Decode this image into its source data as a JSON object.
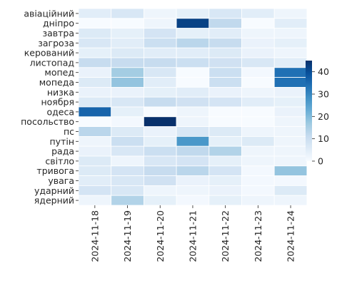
{
  "chart_data": {
    "type": "heatmap",
    "title": "",
    "xlabel": "",
    "ylabel": "",
    "x_labels": [
      "2024-11-18",
      "2024-11-19",
      "2024-11-20",
      "2024-11-21",
      "2024-11-22",
      "2024-11-23",
      "2024-11-24"
    ],
    "y_labels": [
      "авіаційний",
      "дніпро",
      "завтра",
      "загроза",
      "керований",
      "листопад",
      "мопед",
      "мопеда",
      "низка",
      "ноября",
      "одеса",
      "посольство",
      "пс",
      "путін",
      "рада",
      "світло",
      "тривога",
      "увага",
      "ударний",
      "ядерний"
    ],
    "values": [
      [
        5,
        7,
        2,
        4,
        7,
        5,
        2
      ],
      [
        0,
        0,
        2,
        42,
        12,
        0,
        5
      ],
      [
        6,
        4,
        8,
        4,
        5,
        2,
        2
      ],
      [
        7,
        5,
        10,
        13,
        11,
        3,
        4
      ],
      [
        4,
        6,
        5,
        5,
        6,
        3,
        2
      ],
      [
        11,
        11,
        11,
        10,
        9,
        7,
        5
      ],
      [
        3,
        16,
        7,
        0,
        10,
        1,
        34
      ],
      [
        6,
        18,
        5,
        0,
        10,
        0,
        34
      ],
      [
        3,
        3,
        4,
        5,
        3,
        2,
        3
      ],
      [
        6,
        7,
        11,
        9,
        8,
        5,
        4
      ],
      [
        36,
        4,
        0,
        2,
        0,
        0,
        3
      ],
      [
        0,
        1,
        48,
        2,
        0,
        0,
        2
      ],
      [
        13,
        6,
        3,
        7,
        6,
        2,
        2
      ],
      [
        2,
        10,
        4,
        27,
        4,
        6,
        2
      ],
      [
        3,
        7,
        10,
        12,
        14,
        2,
        2
      ],
      [
        6,
        2,
        7,
        8,
        4,
        2,
        2
      ],
      [
        6,
        8,
        11,
        13,
        8,
        1,
        18
      ],
      [
        5,
        7,
        9,
        3,
        4,
        1,
        1
      ],
      [
        8,
        7,
        2,
        2,
        3,
        1,
        6
      ],
      [
        2,
        14,
        4,
        1,
        4,
        2,
        2
      ]
    ],
    "colormap": "Blues",
    "colorbar": {
      "min": 0,
      "max": 45,
      "ticks": [
        0,
        10,
        20,
        30,
        40
      ]
    },
    "grid": false,
    "legend": "colorbar-right"
  }
}
